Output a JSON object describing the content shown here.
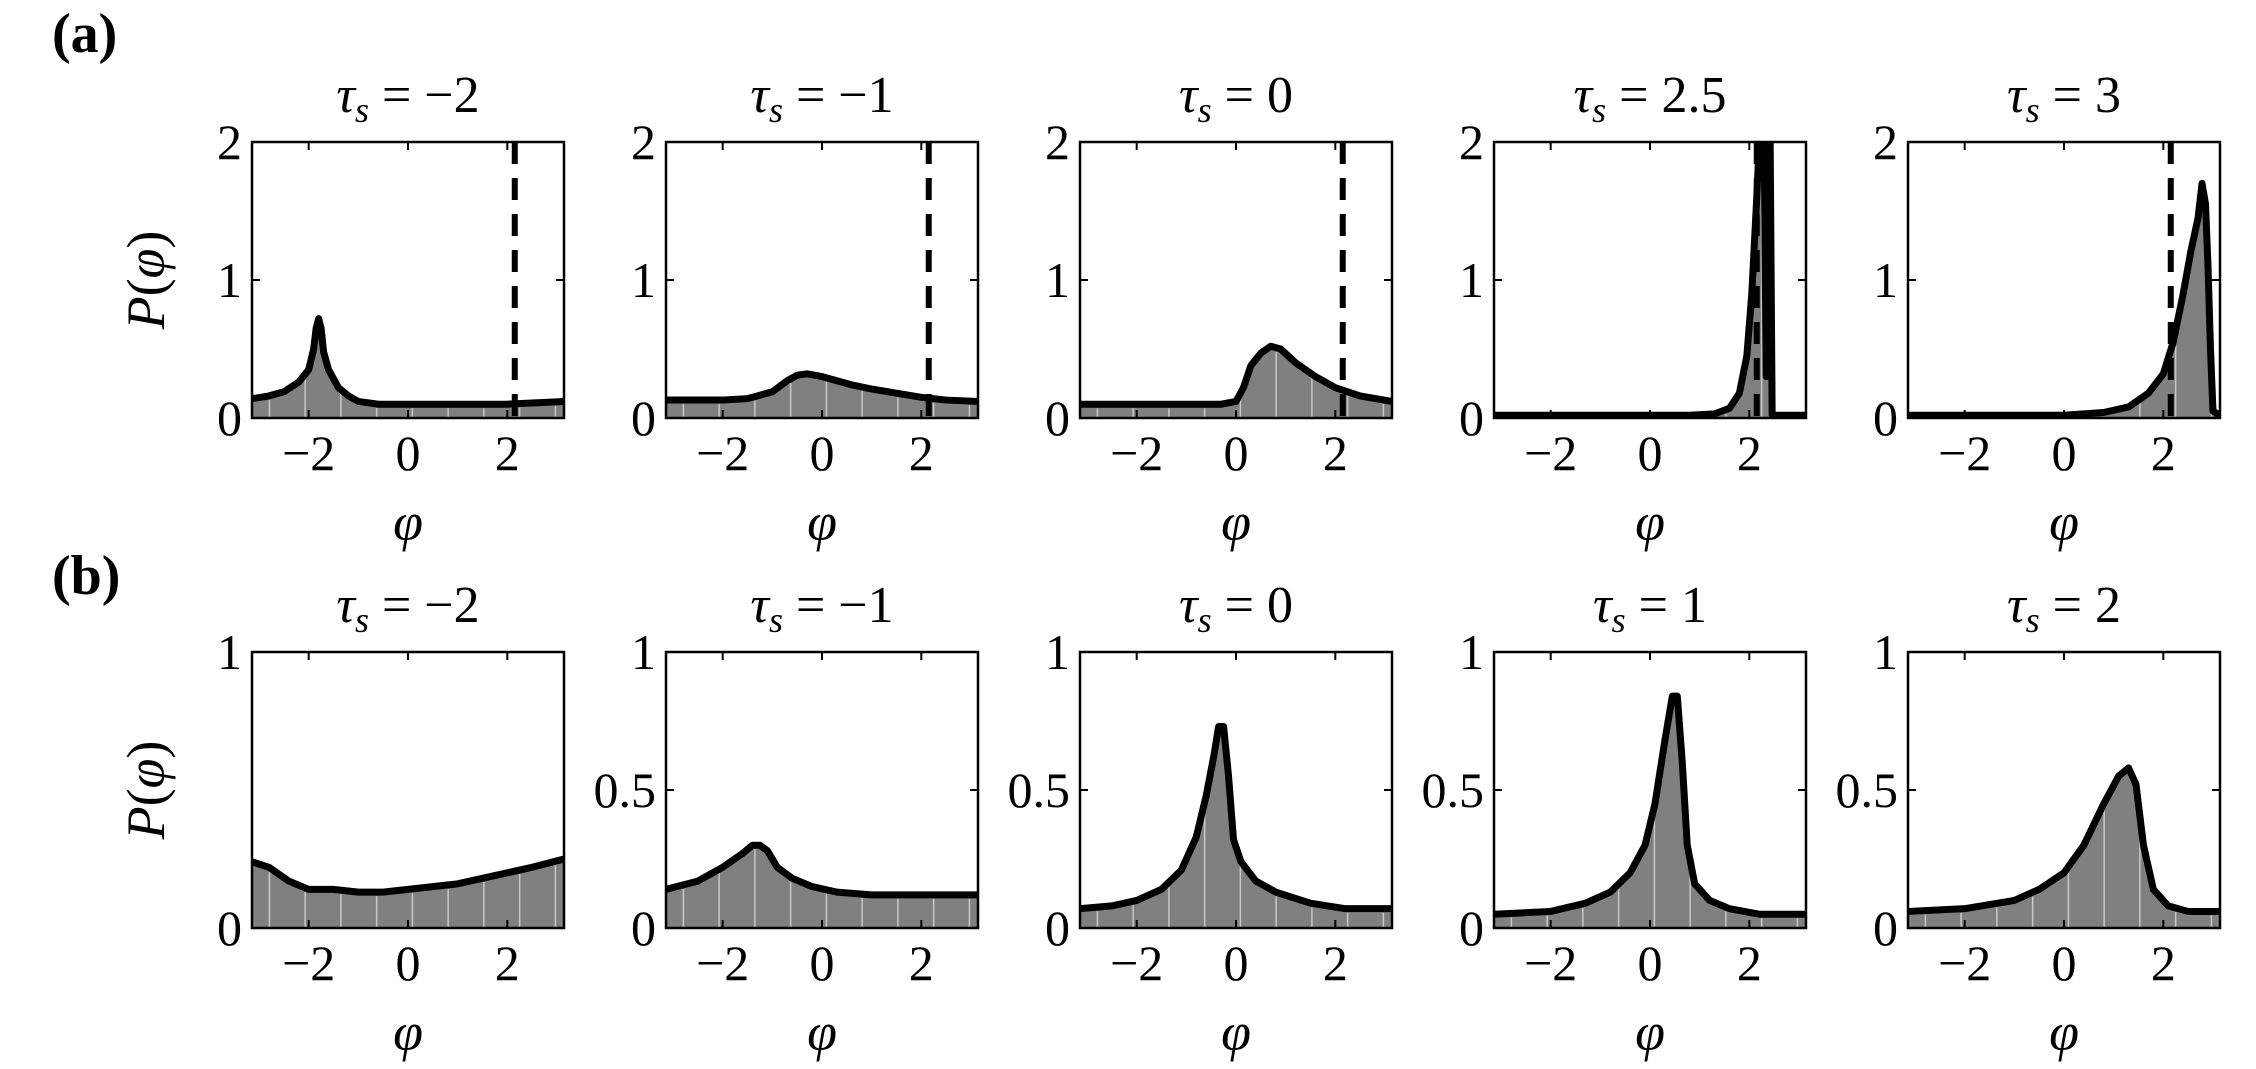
{
  "panel_labels": [
    "(a)",
    "(b)"
  ],
  "chart_data": [
    {
      "panel": "(a)",
      "type": "area",
      "title": "τs = −2",
      "xlabel": "φ",
      "ylabel": "P(φ)",
      "xlim": [
        -3.1416,
        3.1416
      ],
      "ylim": [
        0,
        2
      ],
      "xticks": [
        -2,
        0,
        2
      ],
      "xtick_labels": [
        "−2",
        "0",
        "2"
      ],
      "yticks": [
        0,
        1,
        2
      ],
      "ytick_labels": [
        "0",
        "1",
        "2"
      ],
      "vline": 2.15,
      "vline_style": "dashed",
      "x": [
        -3.14,
        -2.8,
        -2.5,
        -2.2,
        -2.0,
        -1.9,
        -1.85,
        -1.8,
        -1.75,
        -1.7,
        -1.6,
        -1.4,
        -1.2,
        -1.0,
        -0.6,
        0.0,
        1.0,
        2.0,
        3.14
      ],
      "y": [
        0.14,
        0.16,
        0.19,
        0.26,
        0.35,
        0.5,
        0.65,
        0.72,
        0.65,
        0.48,
        0.35,
        0.22,
        0.16,
        0.12,
        0.1,
        0.1,
        0.1,
        0.1,
        0.12
      ]
    },
    {
      "panel": "(a)",
      "type": "area",
      "title": "τs = −1",
      "xlabel": "φ",
      "ylabel": "",
      "xlim": [
        -3.1416,
        3.1416
      ],
      "ylim": [
        0,
        2
      ],
      "xticks": [
        -2,
        0,
        2
      ],
      "xtick_labels": [
        "−2",
        "0",
        "2"
      ],
      "yticks": [
        0,
        1,
        2
      ],
      "ytick_labels": [
        "0",
        "1",
        "2"
      ],
      "vline": 2.15,
      "vline_style": "dashed",
      "x": [
        -3.14,
        -2.5,
        -2.0,
        -1.5,
        -1.0,
        -0.7,
        -0.5,
        -0.3,
        0.0,
        0.3,
        0.6,
        1.0,
        1.5,
        2.0,
        2.5,
        3.14
      ],
      "y": [
        0.13,
        0.13,
        0.13,
        0.14,
        0.19,
        0.27,
        0.31,
        0.32,
        0.3,
        0.27,
        0.24,
        0.21,
        0.18,
        0.15,
        0.13,
        0.12
      ]
    },
    {
      "panel": "(a)",
      "type": "area",
      "title": "τs = 0",
      "xlabel": "φ",
      "ylabel": "",
      "xlim": [
        -3.1416,
        3.1416
      ],
      "ylim": [
        0,
        2
      ],
      "xticks": [
        -2,
        0,
        2
      ],
      "xtick_labels": [
        "−2",
        "0",
        "2"
      ],
      "yticks": [
        0,
        1,
        2
      ],
      "ytick_labels": [
        "0",
        "1",
        "2"
      ],
      "vline": 2.15,
      "vline_style": "dashed",
      "x": [
        -3.14,
        -2.0,
        -1.0,
        -0.3,
        0.0,
        0.15,
        0.3,
        0.5,
        0.7,
        0.9,
        1.2,
        1.6,
        2.0,
        2.5,
        3.14
      ],
      "y": [
        0.1,
        0.1,
        0.1,
        0.1,
        0.12,
        0.22,
        0.38,
        0.47,
        0.52,
        0.5,
        0.4,
        0.3,
        0.22,
        0.16,
        0.12
      ]
    },
    {
      "panel": "(a)",
      "type": "area",
      "title": "τs = 2.5",
      "xlabel": "φ",
      "ylabel": "",
      "xlim": [
        -3.1416,
        3.1416
      ],
      "ylim": [
        0,
        2
      ],
      "xticks": [
        -2,
        0,
        2
      ],
      "xtick_labels": [
        "−2",
        "0",
        "2"
      ],
      "yticks": [
        0,
        1,
        2
      ],
      "ytick_labels": [
        "0",
        "1",
        "2"
      ],
      "vline": 2.15,
      "vline_style": "dashed",
      "x": [
        -3.14,
        -1.0,
        0.8,
        1.3,
        1.6,
        1.8,
        1.95,
        2.05,
        2.15,
        2.2,
        2.26,
        2.3,
        2.34,
        2.38,
        2.42,
        2.46,
        3.14
      ],
      "y": [
        0.02,
        0.02,
        0.02,
        0.03,
        0.07,
        0.18,
        0.45,
        0.9,
        1.6,
        2.0,
        2.0,
        2.0,
        0.3,
        1.8,
        2.0,
        0.02,
        0.02
      ]
    },
    {
      "panel": "(a)",
      "type": "area",
      "title": "τs = 3",
      "xlabel": "φ",
      "ylabel": "",
      "xlim": [
        -3.1416,
        3.1416
      ],
      "ylim": [
        0,
        2
      ],
      "xticks": [
        -2,
        0,
        2
      ],
      "xtick_labels": [
        "−2",
        "0",
        "2"
      ],
      "yticks": [
        0,
        1,
        2
      ],
      "ytick_labels": [
        "0",
        "1",
        "2"
      ],
      "vline": 2.15,
      "vline_style": "dashed",
      "x": [
        -3.14,
        -1.0,
        0.0,
        0.8,
        1.3,
        1.7,
        2.0,
        2.2,
        2.4,
        2.55,
        2.7,
        2.78,
        2.85,
        2.9,
        2.95,
        3.0,
        3.14
      ],
      "y": [
        0.02,
        0.02,
        0.02,
        0.04,
        0.08,
        0.18,
        0.32,
        0.55,
        0.9,
        1.2,
        1.45,
        1.7,
        1.55,
        1.1,
        0.5,
        0.05,
        0.02
      ]
    },
    {
      "panel": "(b)",
      "type": "area",
      "title": "τs = −2",
      "xlabel": "φ",
      "ylabel": "P(φ)",
      "xlim": [
        -3.1416,
        3.1416
      ],
      "ylim": [
        0,
        1
      ],
      "xticks": [
        -2,
        0,
        2
      ],
      "xtick_labels": [
        "−2",
        "0",
        "2"
      ],
      "yticks": [
        0,
        1
      ],
      "ytick_labels": [
        "0",
        "1"
      ],
      "x": [
        -3.14,
        -2.8,
        -2.4,
        -2.0,
        -1.5,
        -1.0,
        -0.5,
        0.0,
        0.5,
        1.0,
        1.5,
        2.0,
        2.5,
        3.14
      ],
      "y": [
        0.24,
        0.22,
        0.17,
        0.14,
        0.14,
        0.13,
        0.13,
        0.14,
        0.15,
        0.16,
        0.18,
        0.2,
        0.22,
        0.25
      ]
    },
    {
      "panel": "(b)",
      "type": "area",
      "title": "τs = −1",
      "xlabel": "φ",
      "ylabel": "",
      "xlim": [
        -3.1416,
        3.1416
      ],
      "ylim": [
        0,
        1
      ],
      "xticks": [
        -2,
        0,
        2
      ],
      "xtick_labels": [
        "−2",
        "0",
        "2"
      ],
      "yticks": [
        0,
        0.5,
        1
      ],
      "ytick_labels": [
        "0",
        "0.5",
        "1"
      ],
      "x": [
        -3.14,
        -2.5,
        -2.0,
        -1.6,
        -1.4,
        -1.25,
        -1.1,
        -0.9,
        -0.6,
        -0.2,
        0.3,
        1.0,
        2.0,
        3.14
      ],
      "y": [
        0.14,
        0.17,
        0.22,
        0.27,
        0.3,
        0.3,
        0.28,
        0.22,
        0.18,
        0.15,
        0.13,
        0.12,
        0.12,
        0.12
      ]
    },
    {
      "panel": "(b)",
      "type": "area",
      "title": "τs = 0",
      "xlabel": "φ",
      "ylabel": "",
      "xlim": [
        -3.1416,
        3.1416
      ],
      "ylim": [
        0,
        1
      ],
      "xticks": [
        -2,
        0,
        2
      ],
      "xtick_labels": [
        "−2",
        "0",
        "2"
      ],
      "yticks": [
        0,
        0.5,
        1
      ],
      "ytick_labels": [
        "0",
        "0.5",
        "1"
      ],
      "x": [
        -3.14,
        -2.5,
        -2.0,
        -1.5,
        -1.1,
        -0.8,
        -0.6,
        -0.45,
        -0.35,
        -0.25,
        -0.15,
        -0.05,
        0.1,
        0.4,
        0.8,
        1.5,
        2.2,
        3.14
      ],
      "y": [
        0.07,
        0.08,
        0.1,
        0.14,
        0.21,
        0.33,
        0.48,
        0.62,
        0.73,
        0.73,
        0.55,
        0.32,
        0.24,
        0.17,
        0.13,
        0.09,
        0.07,
        0.07
      ]
    },
    {
      "panel": "(b)",
      "type": "area",
      "title": "τs = 1",
      "xlabel": "φ",
      "ylabel": "",
      "xlim": [
        -3.1416,
        3.1416
      ],
      "ylim": [
        0,
        1
      ],
      "xticks": [
        -2,
        0,
        2
      ],
      "xtick_labels": [
        "−2",
        "0",
        "2"
      ],
      "yticks": [
        0,
        0.5,
        1
      ],
      "ytick_labels": [
        "0",
        "0.5",
        "1"
      ],
      "x": [
        -3.14,
        -2.0,
        -1.3,
        -0.8,
        -0.4,
        -0.1,
        0.1,
        0.3,
        0.45,
        0.55,
        0.65,
        0.75,
        0.9,
        1.2,
        1.6,
        2.2,
        3.14
      ],
      "y": [
        0.05,
        0.06,
        0.09,
        0.13,
        0.2,
        0.3,
        0.45,
        0.68,
        0.84,
        0.84,
        0.6,
        0.3,
        0.16,
        0.1,
        0.07,
        0.05,
        0.05
      ]
    },
    {
      "panel": "(b)",
      "type": "area",
      "title": "τs = 2",
      "xlabel": "φ",
      "ylabel": "",
      "xlim": [
        -3.1416,
        3.1416
      ],
      "ylim": [
        0,
        1
      ],
      "xticks": [
        -2,
        0,
        2
      ],
      "xtick_labels": [
        "−2",
        "0",
        "2"
      ],
      "yticks": [
        0,
        0.5,
        1
      ],
      "ytick_labels": [
        "0",
        "0.5",
        "1"
      ],
      "x": [
        -3.14,
        -2.0,
        -1.0,
        -0.5,
        0.0,
        0.4,
        0.8,
        1.1,
        1.3,
        1.45,
        1.6,
        1.8,
        2.1,
        2.5,
        3.14
      ],
      "y": [
        0.06,
        0.07,
        0.1,
        0.14,
        0.2,
        0.3,
        0.45,
        0.55,
        0.58,
        0.52,
        0.3,
        0.14,
        0.08,
        0.06,
        0.06
      ]
    }
  ]
}
